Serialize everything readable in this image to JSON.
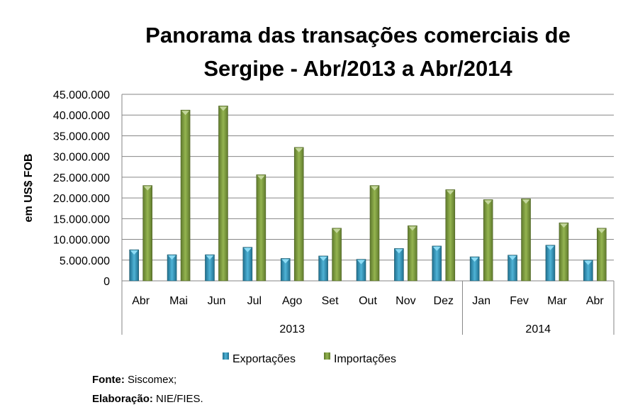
{
  "chart_data": {
    "type": "bar",
    "title": [
      "Panorama das transações comerciais de",
      "Sergipe - Abr/2013 a Abr/2014"
    ],
    "ylabel": "em US$ FOB",
    "xlabel": "",
    "ylim": [
      0,
      45000000
    ],
    "yticks": [
      "0",
      "5.000.000",
      "10.000.000",
      "15.000.000",
      "20.000.000",
      "25.000.000",
      "30.000.000",
      "35.000.000",
      "40.000.000",
      "45.000.000"
    ],
    "categories": [
      "Abr",
      "Mai",
      "Jun",
      "Jul",
      "Ago",
      "Set",
      "Out",
      "Nov",
      "Dez",
      "Jan",
      "Fev",
      "Mar",
      "Abr"
    ],
    "groups": [
      {
        "label": "2013",
        "count": 9
      },
      {
        "label": "2014",
        "count": 4
      }
    ],
    "series": [
      {
        "name": "Exportações",
        "color": "#2e86a8",
        "values": [
          7500000,
          6300000,
          6300000,
          8100000,
          5400000,
          6000000,
          5200000,
          7800000,
          8400000,
          5800000,
          6200000,
          8600000,
          5000000
        ]
      },
      {
        "name": "Importações",
        "color": "#76923c",
        "values": [
          23000000,
          41200000,
          42200000,
          25600000,
          32200000,
          12700000,
          23000000,
          13300000,
          22000000,
          19600000,
          19800000,
          14000000,
          12700000
        ]
      }
    ],
    "grid": true,
    "legend": "bottom"
  },
  "footer": {
    "fonte_label": "Fonte:",
    "fonte_value": "Siscomex;",
    "elab_label": "Elaboração:",
    "elab_value": "NIE/FIES."
  }
}
